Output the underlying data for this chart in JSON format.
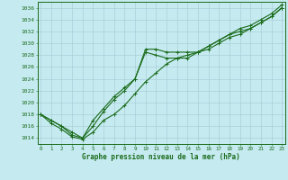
{
  "title": "Graphe pression niveau de la mer (hPa)",
  "background_color": "#c5eaf0",
  "grid_color": "#aacfda",
  "line_color": "#1a6b1a",
  "x_ticks": [
    0,
    1,
    2,
    3,
    4,
    5,
    6,
    7,
    8,
    9,
    10,
    11,
    12,
    13,
    14,
    15,
    16,
    17,
    18,
    19,
    20,
    21,
    22,
    23
  ],
  "y_ticks": [
    1014,
    1016,
    1018,
    1020,
    1022,
    1024,
    1026,
    1028,
    1030,
    1032,
    1034,
    1036
  ],
  "ylim": [
    1013.0,
    1037.0
  ],
  "xlim": [
    -0.3,
    23.3
  ],
  "series1_x": [
    0,
    1,
    2,
    3,
    4,
    5,
    6,
    7,
    8,
    9,
    10,
    11,
    12,
    13,
    14,
    15,
    16,
    17,
    18,
    19,
    20,
    21,
    22,
    23
  ],
  "series1_y": [
    1018,
    1017,
    1016,
    1015,
    1014,
    1017,
    1019,
    1021,
    1022.5,
    1024,
    1029,
    1029,
    1028.5,
    1028.5,
    1028.5,
    1028.5,
    1029,
    1030,
    1031,
    1031.5,
    1032.5,
    1033.5,
    1034.5,
    1036
  ],
  "series2_x": [
    0,
    1,
    2,
    3,
    4,
    5,
    6,
    7,
    8,
    9,
    10,
    11,
    12,
    13,
    14,
    15,
    16,
    17,
    18,
    19,
    20,
    21,
    22,
    23
  ],
  "series2_y": [
    1018,
    1017,
    1016,
    1014.5,
    1014,
    1016,
    1018.5,
    1020.5,
    1022,
    1024,
    1028.5,
    1028,
    1027.5,
    1027.5,
    1028,
    1028.5,
    1029.5,
    1030.5,
    1031.5,
    1032,
    1032.5,
    1033.5,
    1034.5,
    1036
  ],
  "series3_x": [
    0,
    1,
    2,
    3,
    4,
    5,
    6,
    7,
    8,
    9,
    10,
    11,
    12,
    13,
    14,
    15,
    16,
    17,
    18,
    19,
    20,
    21,
    22,
    23
  ],
  "series3_y": [
    1018,
    1016.5,
    1015.5,
    1014.2,
    1013.8,
    1015,
    1017,
    1018,
    1019.5,
    1021.5,
    1023.5,
    1025,
    1026.5,
    1027.5,
    1027.5,
    1028.5,
    1029.5,
    1030.5,
    1031.5,
    1032.5,
    1033,
    1034,
    1035,
    1036.5
  ]
}
